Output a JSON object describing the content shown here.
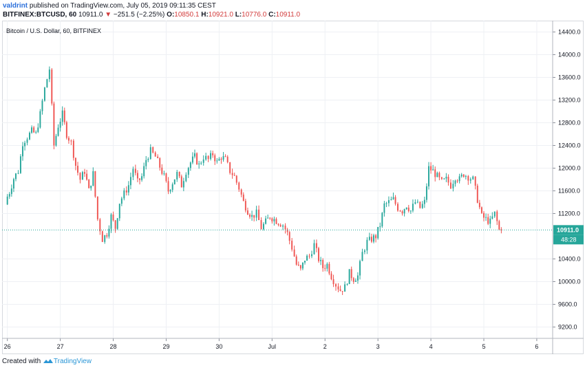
{
  "header": {
    "user": "valdrint",
    "published": "published on TradingView.com, July 05, 2019 09:11:35 CEST",
    "symbol": "BITFINEX:BTCUSD, 60",
    "last": "10911.0",
    "change_arrow": "▼",
    "change": "−251.5 (−2.25%)",
    "o_label": "O:",
    "o_value": "10850.1",
    "h_label": "H:",
    "h_value": "10921.0",
    "l_label": "L:",
    "l_value": "10776.0",
    "c_label": "C:",
    "c_value": "10911.0"
  },
  "footer": {
    "created_with": "Created with",
    "brand": "TradingView",
    "brand_icon": "tradingview-logo-icon"
  },
  "colors": {
    "up": "#26a69a",
    "down": "#ef5350",
    "grid": "#eef0f4",
    "price_line": "#26a69a",
    "axis_text": "#131722"
  },
  "chart_data": {
    "type": "candlestick",
    "title": "Bitcoin / U.S. Dollar, 60, BITFINEX",
    "ylim": [
      9000,
      14600
    ],
    "yticks": [
      "14400.0",
      "14000.0",
      "13600.0",
      "13200.0",
      "12800.0",
      "12400.0",
      "12000.0",
      "11600.0",
      "11200.0",
      "10400.0",
      "10000.0",
      "9600.0",
      "9200.0"
    ],
    "ytick_values": [
      14400,
      14000,
      13600,
      13200,
      12800,
      12400,
      12000,
      11600,
      11200,
      10400,
      10000,
      9600,
      9200
    ],
    "xticks": [
      "26",
      "27",
      "28",
      "29",
      "30",
      "Jul",
      "2",
      "3",
      "4",
      "5",
      "6"
    ],
    "xtick_days": [
      0,
      1,
      2,
      3,
      4,
      5,
      6,
      7,
      8,
      9,
      10
    ],
    "x_range_days": [
      -0.1,
      10.3
    ],
    "last_price": 10911.0,
    "last_price_label": "10911.0",
    "countdown_label": "48:28",
    "key_closes_day_price": [
      [
        0.0,
        11420
      ],
      [
        0.08,
        11580
      ],
      [
        0.16,
        11820
      ],
      [
        0.25,
        11950
      ],
      [
        0.33,
        12450
      ],
      [
        0.42,
        12550
      ],
      [
        0.5,
        12650
      ],
      [
        0.58,
        12600
      ],
      [
        0.66,
        12950
      ],
      [
        0.75,
        13400
      ],
      [
        0.84,
        13750
      ],
      [
        0.92,
        12400
      ],
      [
        1.0,
        12750
      ],
      [
        1.08,
        12950
      ],
      [
        1.16,
        12600
      ],
      [
        1.25,
        12450
      ],
      [
        1.33,
        12050
      ],
      [
        1.42,
        11800
      ],
      [
        1.5,
        11950
      ],
      [
        1.58,
        11600
      ],
      [
        1.66,
        11900
      ],
      [
        1.75,
        11100
      ],
      [
        1.84,
        10750
      ],
      [
        1.92,
        10850
      ],
      [
        2.0,
        11150
      ],
      [
        2.08,
        10950
      ],
      [
        2.16,
        11400
      ],
      [
        2.25,
        11550
      ],
      [
        2.33,
        11700
      ],
      [
        2.42,
        12000
      ],
      [
        2.5,
        11750
      ],
      [
        2.58,
        11850
      ],
      [
        2.66,
        12150
      ],
      [
        2.75,
        12300
      ],
      [
        2.84,
        12200
      ],
      [
        3.0,
        11850
      ],
      [
        3.08,
        11600
      ],
      [
        3.16,
        11750
      ],
      [
        3.25,
        11900
      ],
      [
        3.33,
        11700
      ],
      [
        3.42,
        11950
      ],
      [
        3.5,
        12100
      ],
      [
        3.58,
        12200
      ],
      [
        3.66,
        12050
      ],
      [
        3.75,
        12200
      ],
      [
        3.84,
        12150
      ],
      [
        3.92,
        12250
      ],
      [
        4.0,
        12100
      ],
      [
        4.08,
        12200
      ],
      [
        4.16,
        12150
      ],
      [
        4.25,
        11950
      ],
      [
        4.33,
        11850
      ],
      [
        4.42,
        11650
      ],
      [
        4.5,
        11400
      ],
      [
        4.58,
        11250
      ],
      [
        4.66,
        11150
      ],
      [
        4.75,
        11200
      ],
      [
        4.84,
        10950
      ],
      [
        4.92,
        11050
      ],
      [
        5.0,
        11150
      ],
      [
        5.08,
        11100
      ],
      [
        5.16,
        11050
      ],
      [
        5.25,
        11000
      ],
      [
        5.33,
        10850
      ],
      [
        5.42,
        10600
      ],
      [
        5.5,
        10300
      ],
      [
        5.58,
        10200
      ],
      [
        5.66,
        10400
      ],
      [
        5.75,
        10450
      ],
      [
        5.84,
        10650
      ],
      [
        5.92,
        10400
      ],
      [
        6.0,
        10250
      ],
      [
        6.08,
        10300
      ],
      [
        6.16,
        10100
      ],
      [
        6.25,
        9950
      ],
      [
        6.33,
        9850
      ],
      [
        6.42,
        9900
      ],
      [
        6.5,
        10150
      ],
      [
        6.58,
        10050
      ],
      [
        6.66,
        10100
      ],
      [
        6.75,
        10500
      ],
      [
        6.84,
        10700
      ],
      [
        6.92,
        10750
      ],
      [
        7.0,
        10800
      ],
      [
        7.08,
        11000
      ],
      [
        7.16,
        11350
      ],
      [
        7.25,
        11400
      ],
      [
        7.33,
        11450
      ],
      [
        7.42,
        11300
      ],
      [
        7.5,
        11250
      ],
      [
        7.58,
        11350
      ],
      [
        7.66,
        11250
      ],
      [
        7.75,
        11400
      ],
      [
        7.84,
        11300
      ],
      [
        7.92,
        11400
      ],
      [
        8.0,
        12000
      ],
      [
        8.08,
        11950
      ],
      [
        8.16,
        11850
      ],
      [
        8.25,
        11750
      ],
      [
        8.33,
        11800
      ],
      [
        8.42,
        11700
      ],
      [
        8.5,
        11850
      ],
      [
        8.58,
        11800
      ],
      [
        8.66,
        11900
      ],
      [
        8.75,
        11850
      ],
      [
        8.84,
        11800
      ],
      [
        8.92,
        11450
      ],
      [
        9.0,
        11150
      ],
      [
        9.08,
        11100
      ],
      [
        9.16,
        11050
      ],
      [
        9.25,
        11200
      ],
      [
        9.33,
        10911
      ]
    ]
  }
}
